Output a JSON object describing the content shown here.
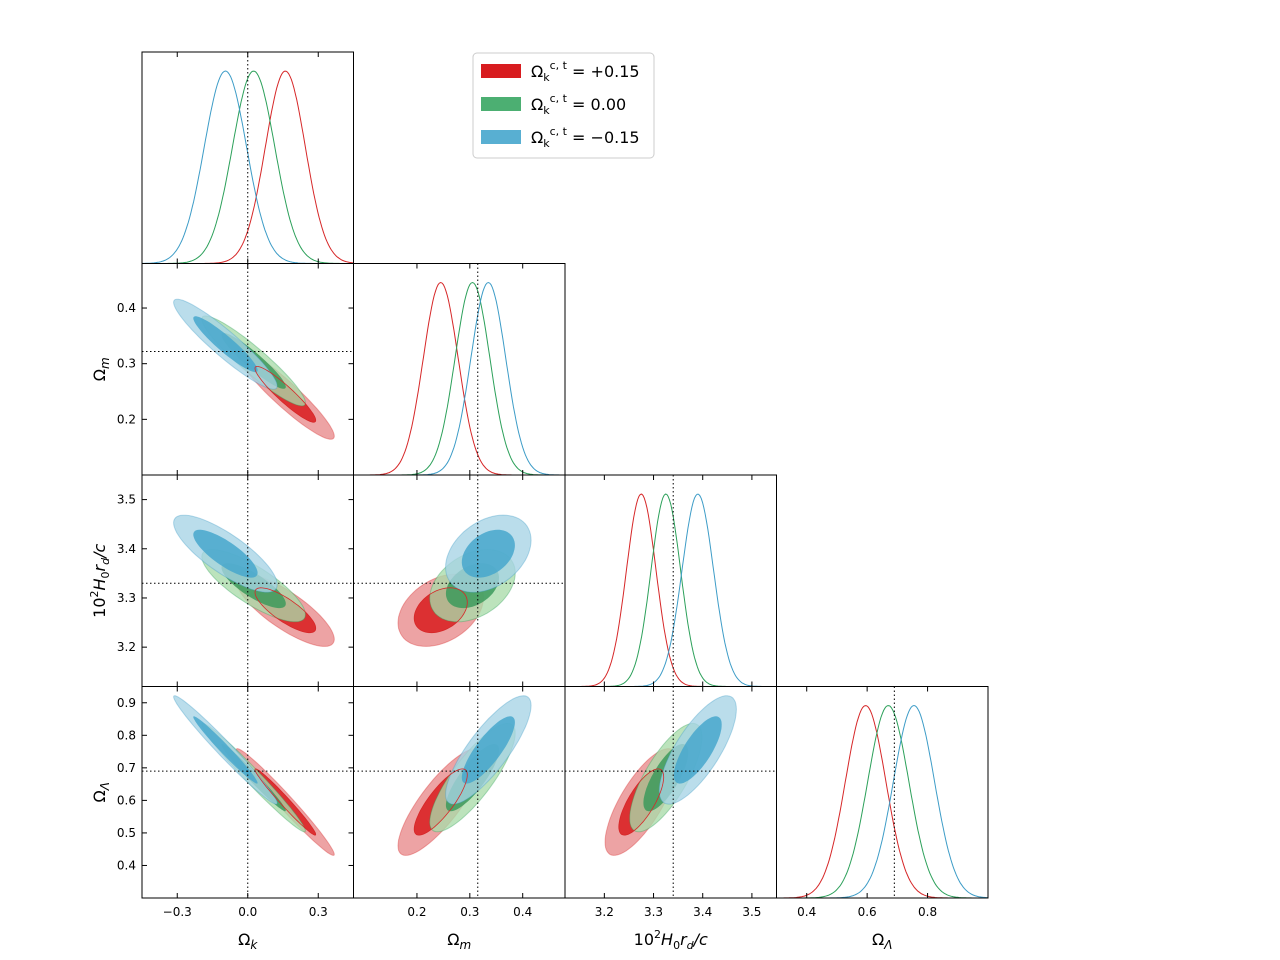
{
  "chart_data": {
    "type": "triangle-corner",
    "title": "",
    "params": [
      {
        "key": "ok",
        "label": "Ω_k",
        "range": [
          -0.45,
          0.45
        ],
        "ticks": [
          -0.3,
          0.0,
          0.3
        ],
        "tick_labels": [
          "−0.3",
          "0.0",
          "0.3"
        ],
        "fiducial": 0.0
      },
      {
        "key": "om",
        "label": "Ω_m",
        "range": [
          0.08,
          0.48
        ],
        "ticks": [
          0.2,
          0.3,
          0.4
        ],
        "tick_labels": [
          "0.2",
          "0.3",
          "0.4"
        ],
        "fiducial": 0.315
      },
      {
        "key": "hrd",
        "label": "10²H₀r_d/c",
        "range": [
          3.12,
          3.55
        ],
        "ticks": [
          3.2,
          3.3,
          3.4,
          3.5
        ],
        "tick_labels": [
          "3.2",
          "3.3",
          "3.4",
          "3.5"
        ],
        "fiducial": 3.34
      },
      {
        "key": "ol",
        "label": "Ω_Λ",
        "range": [
          0.3,
          1.0
        ],
        "ticks": [
          0.4,
          0.6,
          0.8
        ],
        "tick_labels": [
          "0.4",
          "0.6",
          "0.8"
        ],
        "fiducial": 0.69
      }
    ],
    "y_axis": {
      "om": {
        "range": [
          0.1,
          0.48
        ],
        "ticks": [
          0.2,
          0.3,
          0.4
        ],
        "tick_labels": [
          "0.2",
          "0.3",
          "0.4"
        ],
        "fiducial": 0.322
      },
      "hrd": {
        "range": [
          3.12,
          3.55
        ],
        "ticks": [
          3.2,
          3.3,
          3.4,
          3.5
        ],
        "tick_labels": [
          "3.2",
          "3.3",
          "3.4",
          "3.5"
        ],
        "fiducial": 3.33
      },
      "ol": {
        "range": [
          0.3,
          0.95
        ],
        "ticks": [
          0.4,
          0.5,
          0.6,
          0.7,
          0.8,
          0.9
        ],
        "tick_labels": [
          "0.4",
          "0.5",
          "0.6",
          "0.7",
          "0.8",
          "0.9"
        ],
        "fiducial": 0.69
      }
    },
    "legend": {
      "placement": "top-center",
      "entries": [
        {
          "prefix": "Ω",
          "sub": "k",
          "sup": "c, t",
          "value": "+0.15"
        },
        {
          "prefix": "Ω",
          "sub": "k",
          "sup": "c, t",
          "value": "0.00"
        },
        {
          "prefix": "Ω",
          "sub": "k",
          "sup": "c, t",
          "value": "−0.15"
        }
      ]
    },
    "series": [
      {
        "name": "Ω_k^{c,t} = +0.15",
        "color": "#d62728",
        "fill": "#e8898a",
        "fill_inner": "#d81c1f",
        "mean": {
          "ok": 0.16,
          "om": 0.245,
          "hrd": 3.275,
          "ol": 0.595
        },
        "sigma": {
          "ok": 0.085,
          "om": 0.033,
          "hrd": 0.03,
          "ol": 0.067
        },
        "corr": {
          "ok|om": -0.93,
          "ok|hrd": -0.8,
          "ok|ol": -0.98,
          "om|hrd": 0.35,
          "om|ol": 0.82,
          "hrd|ol": 0.75
        }
      },
      {
        "name": "Ω_k^{c,t} = 0.00",
        "color": "#2ca05a",
        "fill": "#a9dba9",
        "fill_inner": "#3c9a5c",
        "mean": {
          "ok": 0.025,
          "om": 0.305,
          "hrd": 3.325,
          "ol": 0.67
        },
        "sigma": {
          "ok": 0.09,
          "om": 0.033,
          "hrd": 0.03,
          "ol": 0.068
        },
        "corr": {
          "ok|om": -0.93,
          "ok|hrd": -0.8,
          "ok|ol": -0.98,
          "om|hrd": 0.35,
          "om|ol": 0.82,
          "hrd|ol": 0.75
        }
      },
      {
        "name": "Ω_k^{c,t} = −0.15",
        "color": "#3d9cc7",
        "fill": "#a7d3e6",
        "fill_inner": "#47a7cc",
        "mean": {
          "ok": -0.095,
          "om": 0.335,
          "hrd": 3.39,
          "ol": 0.755
        },
        "sigma": {
          "ok": 0.09,
          "om": 0.033,
          "hrd": 0.032,
          "ol": 0.068
        },
        "corr": {
          "ok|om": -0.93,
          "ok|hrd": -0.8,
          "ok|ol": -0.98,
          "om|hrd": 0.35,
          "om|ol": 0.82,
          "hrd|ol": 0.75
        }
      }
    ],
    "contour_levels": [
      "68%",
      "95%"
    ],
    "grid": false
  }
}
